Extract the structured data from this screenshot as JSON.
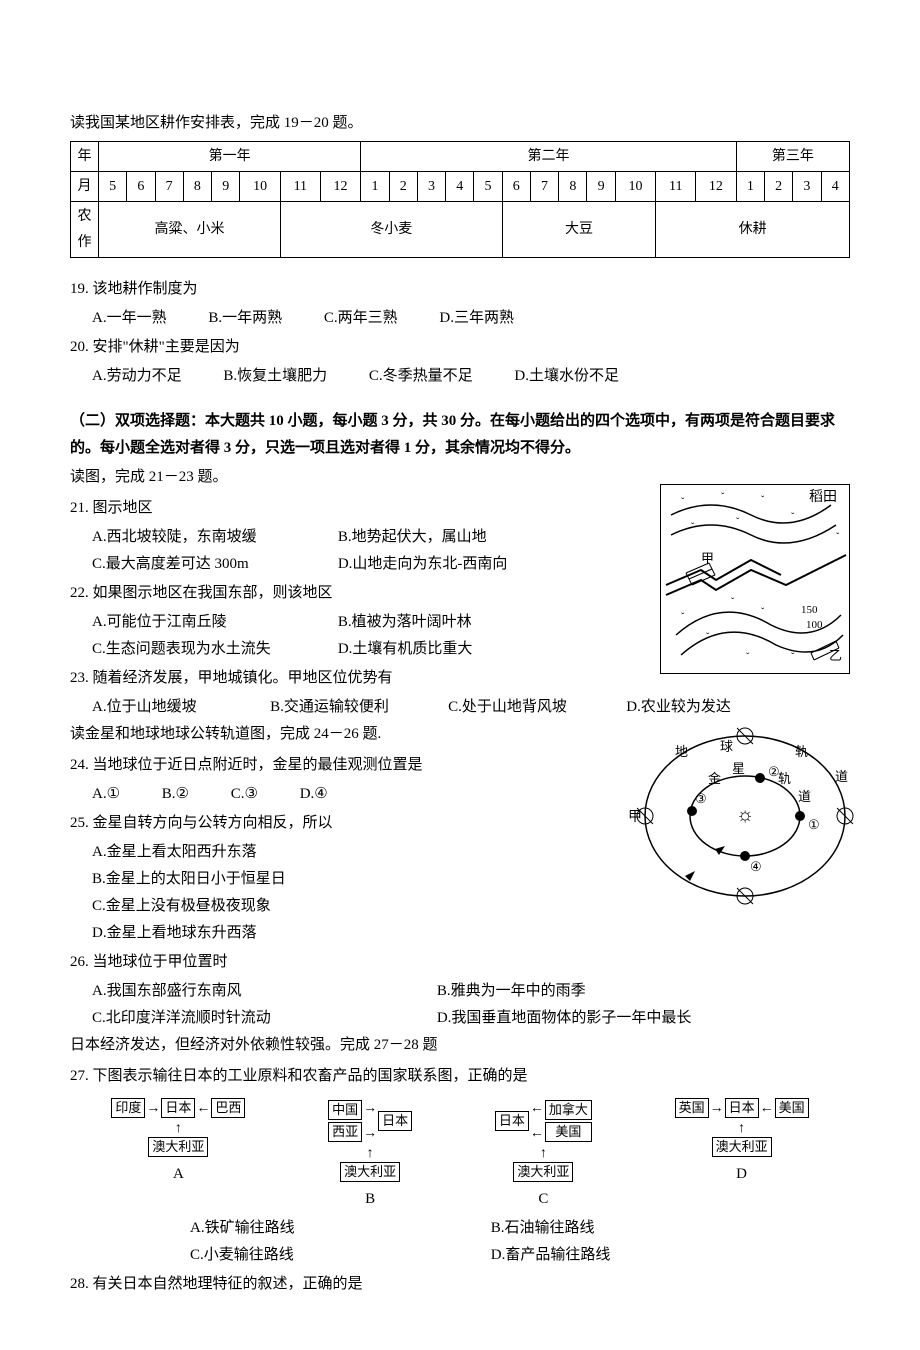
{
  "intro1": "读我国某地区耕作安排表，完成 19－20 题。",
  "table": {
    "row_labels": [
      "年",
      "月",
      "农作"
    ],
    "year_headers": [
      "第一年",
      "第二年",
      "第三年"
    ],
    "year_spans": [
      8,
      12,
      4
    ],
    "months": [
      "5",
      "6",
      "7",
      "8",
      "9",
      "10",
      "11",
      "12",
      "1",
      "2",
      "3",
      "4",
      "5",
      "6",
      "7",
      "8",
      "9",
      "10",
      "11",
      "12",
      "1",
      "2",
      "3",
      "4"
    ],
    "crops": [
      {
        "label": "高粱、小米",
        "span": 6
      },
      {
        "label": "冬小麦",
        "span": 7
      },
      {
        "label": "大豆",
        "span": 5
      },
      {
        "label": "休耕",
        "span": 6
      }
    ]
  },
  "q19": {
    "text": "19.  该地耕作制度为",
    "A": "A.一年一熟",
    "B": "B.一年两熟",
    "C": "C.两年三熟",
    "D": "D.三年两熟"
  },
  "q20": {
    "text": "20.  安排\"休耕\"主要是因为",
    "A": "A.劳动力不足",
    "B": "B.恢复土壤肥力",
    "C": "C.冬季热量不足",
    "D": "D.土壤水份不足"
  },
  "section2": "（二）双项选择题：本大题共 10 小题，每小题 3 分，共 30 分。在每小题给出的四个选项中，有两项是符合题目要求的。每小题全选对者得 3 分，只选一项且选对者得 1 分，其余情况均不得分。",
  "intro2": "读图，完成 21－23 题。",
  "fig1": {
    "label_paddy": "稻田",
    "label_jia": "甲",
    "label_yi": "乙",
    "contour_150": "150",
    "contour_100": "100",
    "colors": {
      "stroke": "#000000",
      "bg": "#ffffff"
    }
  },
  "q21": {
    "text": "21.  图示地区",
    "A": "A.西北坡较陡，东南坡缓",
    "B": "B.地势起伏大，属山地",
    "C": "C.最大高度差可达 300m",
    "D": "D.山地走向为东北-西南向"
  },
  "q22": {
    "text": "22.  如果图示地区在我国东部，则该地区",
    "A": "A.可能位于江南丘陵",
    "B": "B.植被为落叶阔叶林",
    "C": "C.生态问题表现为水土流失",
    "D": "D.土壤有机质比重大"
  },
  "q23": {
    "text": "23.  随着经济发展，甲地城镇化。甲地区位优势有",
    "A": "A.位于山地缓坡",
    "B": "B.交通运输较便利",
    "C": "C.处于山地背风坡",
    "D": "D.农业较为发达"
  },
  "intro3": "读金星和地球地球公转轨道图，完成 24－26 题.",
  "fig2": {
    "earth_orbit": "球",
    "earth_prefix": "地",
    "orbit_suffix": "轨",
    "dao": "道",
    "venus_prefix": "金",
    "venus": "星",
    "venus_orbit": "轨",
    "venus_dao": "道",
    "jia": "甲",
    "pts": [
      "①",
      "②",
      "③",
      "④"
    ],
    "colors": {
      "stroke": "#000000",
      "fill": "#000000",
      "bg": "#ffffff"
    }
  },
  "q24": {
    "text": "24.  当地球位于近日点附近时，金星的最佳观测位置是",
    "A": "A.①",
    "B": "B.②",
    "C": "C.③",
    "D": "D.④"
  },
  "q25": {
    "text": "25.  金星自转方向与公转方向相反，所以",
    "A": "A.金星上看太阳西升东落",
    "B": "B.金星上的太阳日小于恒星日",
    "C": "C.金星上没有极昼极夜现象",
    "D": "D.金星上看地球东升西落"
  },
  "q26": {
    "text": "26.  当地球位于甲位置时",
    "A": "A.我国东部盛行东南风",
    "B": "B.雅典为一年中的雨季",
    "C": "C.北印度洋洋流顺时针流动",
    "D": "D.我国垂直地面物体的影子一年中最长"
  },
  "intro4": "日本经济发达，但经济对外依赖性较强。完成 27－28 题",
  "q27": {
    "text": "27.  下图表示输往日本的工业原料和农畜产品的国家联系图，正确的是",
    "A": "A.铁矿输往路线",
    "B": "B.石油输往路线",
    "C": "C.小麦输往路线",
    "D": "D.畜产品输往路线"
  },
  "diagrams": {
    "australia": "澳大利亚",
    "japan": "日本",
    "A": {
      "left": "印度",
      "right": "巴西",
      "label": "A"
    },
    "B": {
      "left": "中国",
      "left2": "西亚",
      "label": "B"
    },
    "C": {
      "right_top": "加拿大",
      "right_bot": "美国",
      "label": "C"
    },
    "D": {
      "left": "英国",
      "right": "美国",
      "label": "D"
    }
  },
  "q28": {
    "text": "28.  有关日本自然地理特征的叙述，正确的是"
  }
}
